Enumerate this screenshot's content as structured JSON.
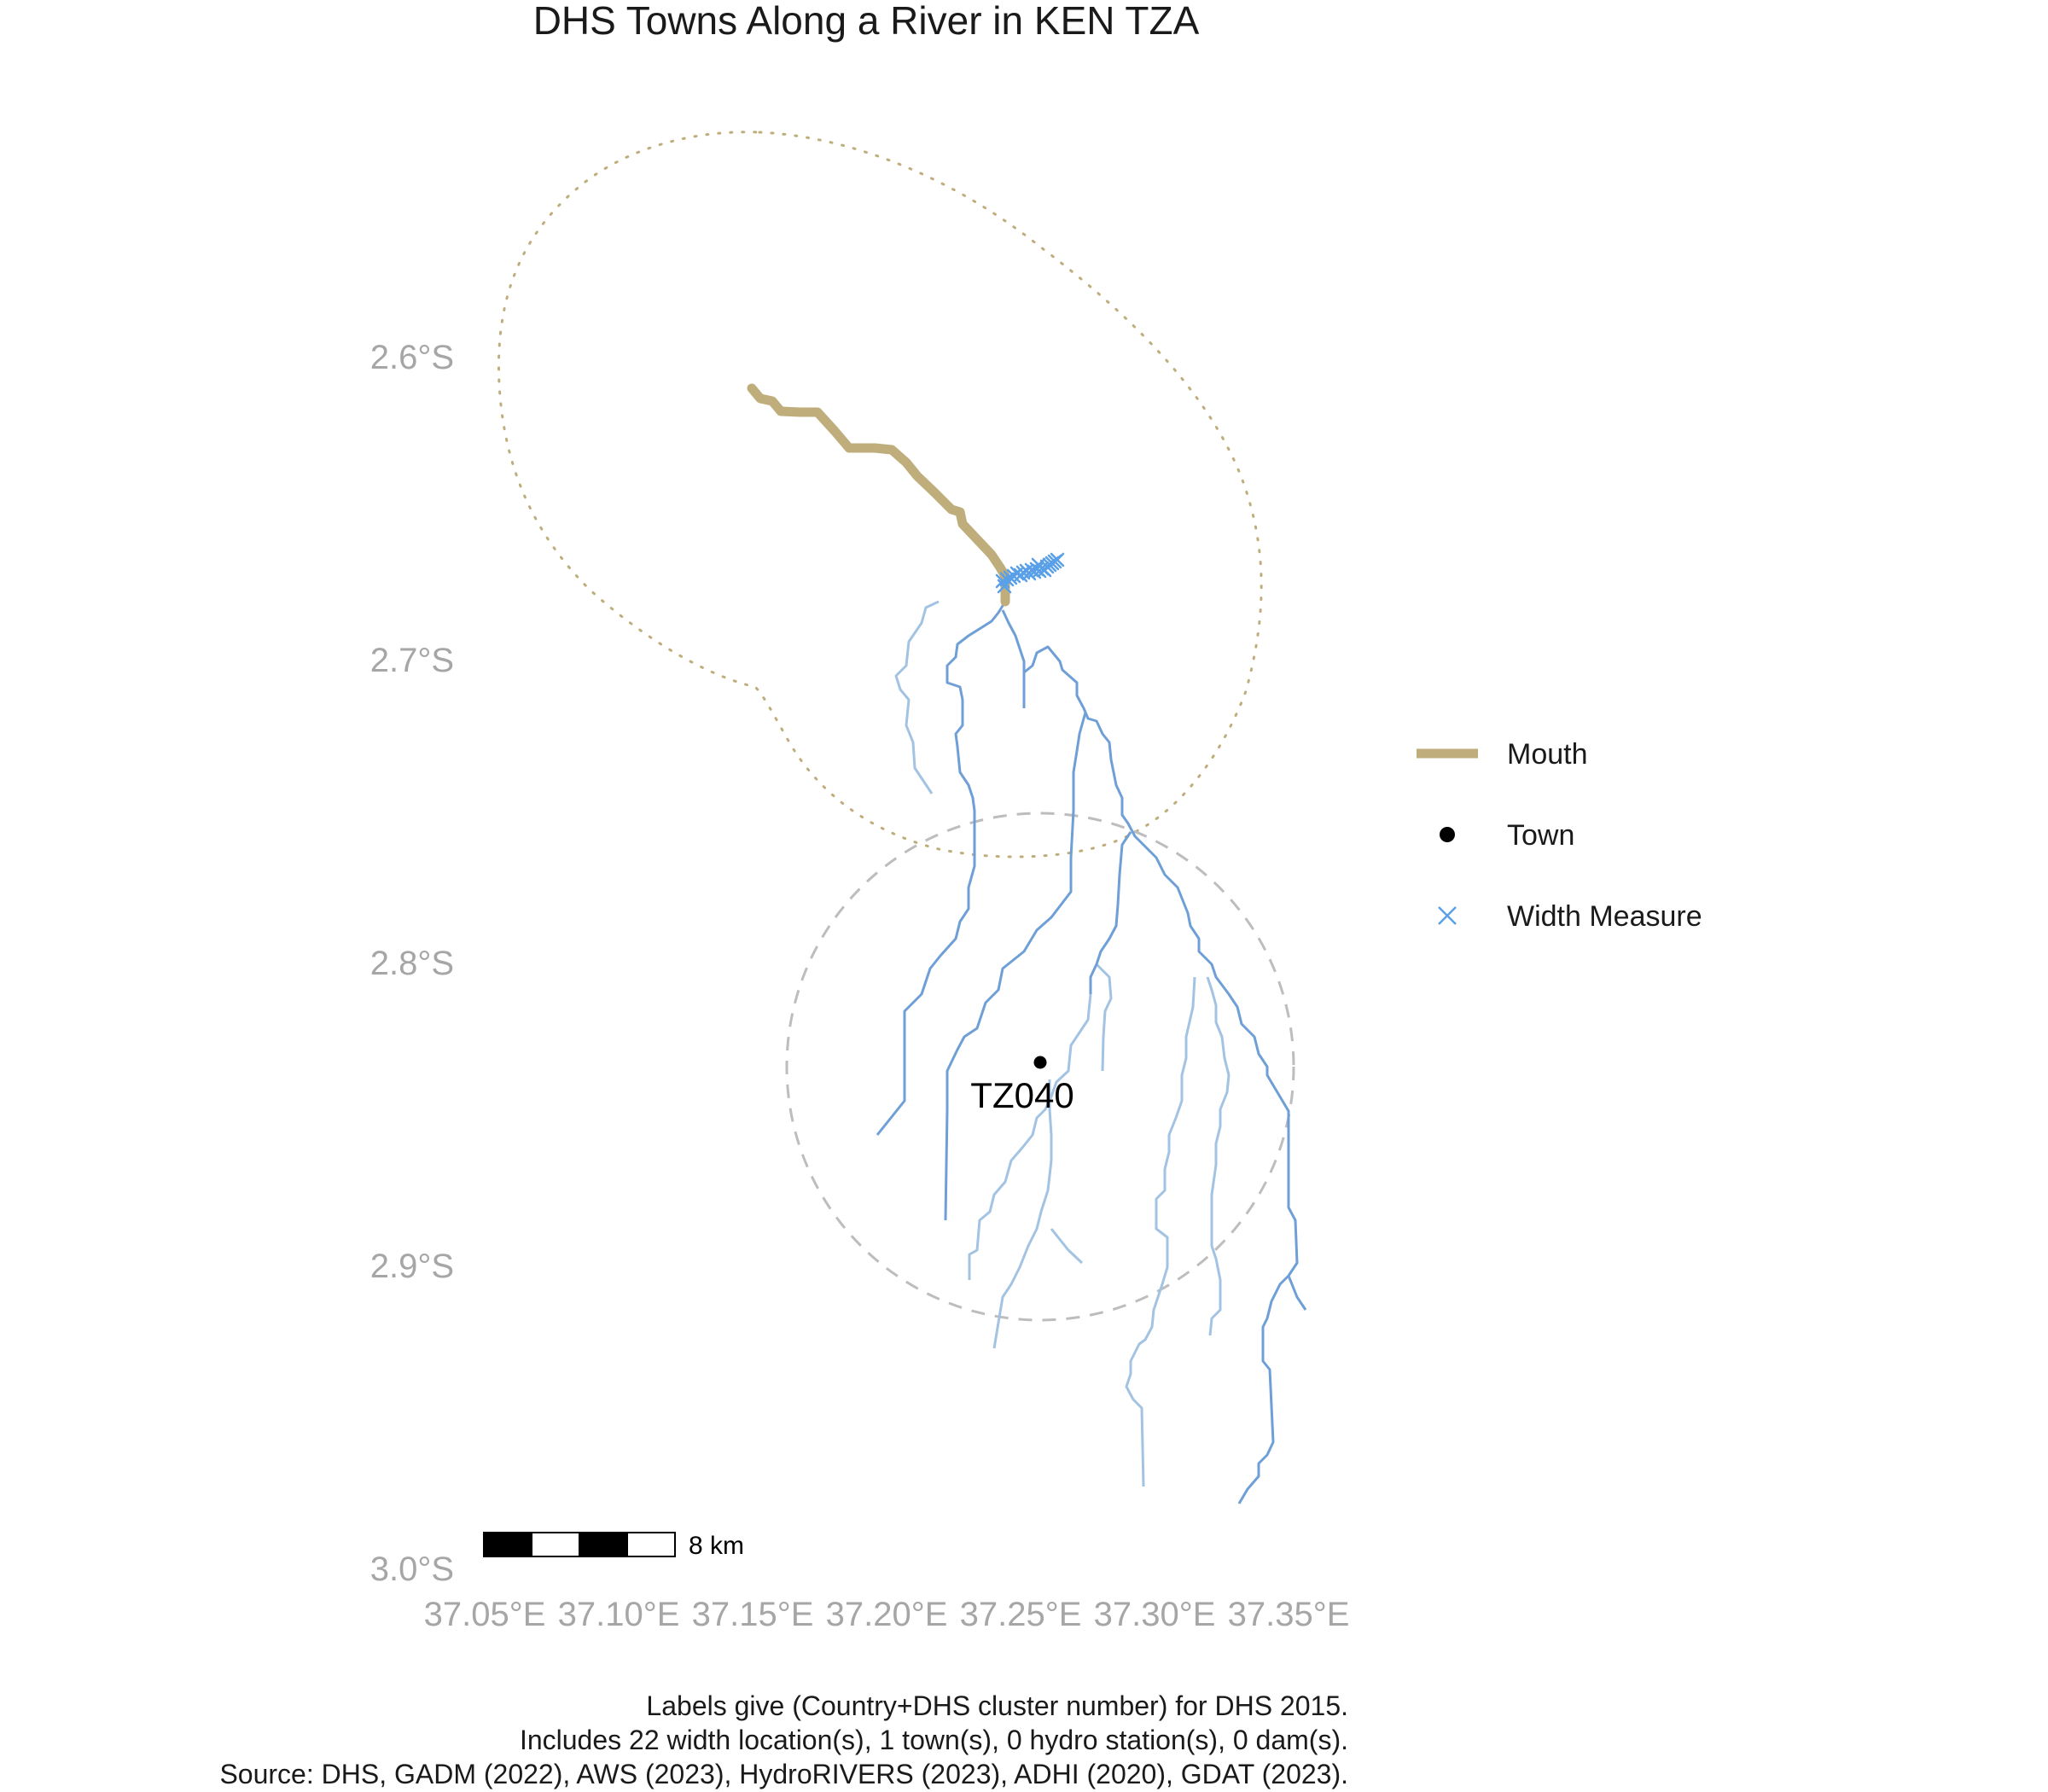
{
  "title": "DHS Towns Along a River in KEN TZA",
  "axes": {
    "x_ticks": [
      "37.05°E",
      "37.10°E",
      "37.15°E",
      "37.20°E",
      "37.25°E",
      "37.30°E",
      "37.35°E"
    ],
    "y_ticks": [
      "2.6°S",
      "2.7°S",
      "2.8°S",
      "2.9°S",
      "3.0°S"
    ]
  },
  "legend": {
    "items": [
      {
        "label": "Mouth",
        "kind": "line",
        "color": "#BFAE7C"
      },
      {
        "label": "Town",
        "kind": "point",
        "color": "#000000"
      },
      {
        "label": "Width Measure",
        "kind": "cross",
        "color": "#5AA0E8"
      }
    ]
  },
  "town": {
    "label": "TZ040",
    "lon": 37.263,
    "lat": -2.834
  },
  "scale_bar": {
    "label": "8 km"
  },
  "caption": {
    "line1": "Labels give (Country+DHS cluster number) for DHS 2015.",
    "line2": "Includes 22 width location(s), 1 town(s), 0 hydro station(s), 0 dam(s).",
    "line3": "Source: DHS, GADM (2022), AWS (2023), HydroRIVERS (2023), ADHI (2020), GDAT (2023)."
  },
  "colors": {
    "mouth": "#BFAE7C",
    "river_main": "#6E9FD6",
    "river_trib": "#A3C3E3",
    "width_measure": "#5AA0E8",
    "buffer_circle": "#BDBDBD",
    "axis_text": "#A6A6A6"
  }
}
